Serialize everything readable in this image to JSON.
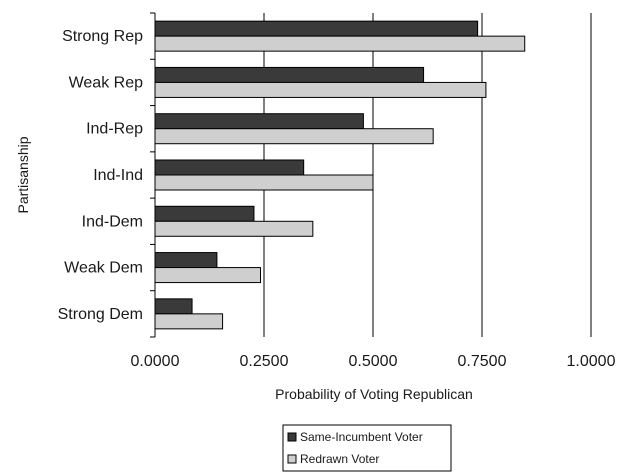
{
  "chart_data": {
    "type": "bar",
    "orientation": "horizontal",
    "categories": [
      "Strong Rep",
      "Weak Rep",
      "Ind-Rep",
      "Ind-Ind",
      "Ind-Dem",
      "Weak Dem",
      "Strong Dem"
    ],
    "series": [
      {
        "name": "Same-Incumbent Voter",
        "values": [
          0.74,
          0.616,
          0.478,
          0.341,
          0.227,
          0.142,
          0.085
        ]
      },
      {
        "name": "Redrawn Voter",
        "values": [
          0.848,
          0.759,
          0.638,
          0.5,
          0.362,
          0.242,
          0.155
        ]
      }
    ],
    "xlabel": "Probability of Voting Republican",
    "ylabel": "Partisanship",
    "xlim": [
      0,
      1
    ],
    "xticks": [
      "0.0000",
      "0.2500",
      "0.5000",
      "0.7500",
      "1.0000"
    ],
    "grid": "vertical",
    "legend_position": "bottom",
    "colors": {
      "Same-Incumbent Voter": "#3a3a3a",
      "Redrawn Voter": "#cfcfcf"
    }
  }
}
